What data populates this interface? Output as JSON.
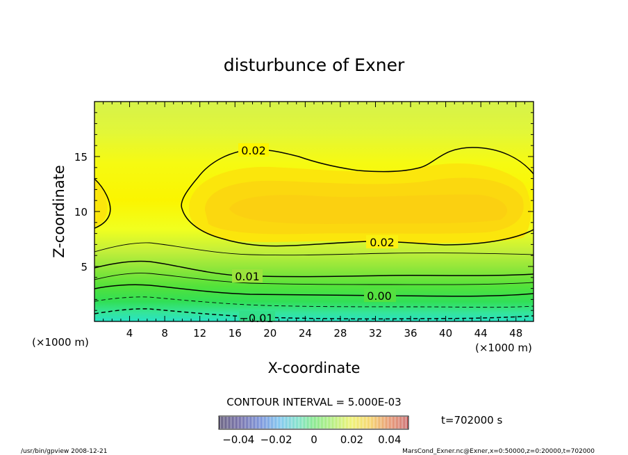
{
  "chart_data": {
    "type": "contour",
    "title": "disturbunce of Exner",
    "xlabel": "X-coordinate",
    "ylabel": "Z-coordinate",
    "x_unit": "(×1000 m)",
    "y_unit": "(×1000 m)",
    "xlim": [
      0,
      50
    ],
    "ylim": [
      0,
      20
    ],
    "x_ticks": [
      4,
      8,
      12,
      16,
      20,
      24,
      28,
      32,
      36,
      40,
      44,
      48
    ],
    "y_ticks": [
      5,
      10,
      15
    ],
    "contour_interval_text": "CONTOUR INTERVAL = 5.000E-03",
    "contour_interval": 0.005,
    "contour_labels": [
      {
        "text": "0.02",
        "x": 18.2,
        "z": 15.5
      },
      {
        "text": "0.02",
        "x": 32.7,
        "z": 7.2
      },
      {
        "text": "0.01",
        "x": 17.3,
        "z": 4.2
      },
      {
        "text": "0.00",
        "x": 32.3,
        "z": 2.3
      },
      {
        "text": "−0.01",
        "x": 18.8,
        "z": 0.3
      }
    ],
    "colorbar": {
      "min": -0.05,
      "max": 0.05,
      "tick_values": [
        -0.04,
        -0.02,
        0,
        0.02,
        0.04
      ],
      "tick_labels": [
        "−0.04",
        "−0.02",
        "0",
        "0.02",
        "0.04"
      ]
    },
    "time_label": "t=702000 s"
  },
  "footer": {
    "left": "/usr/bin/gpview   2008-12-21",
    "right": "MarsCond_Exner.nc@Exner,x=0:50000,z=0:20000,t=702000"
  }
}
